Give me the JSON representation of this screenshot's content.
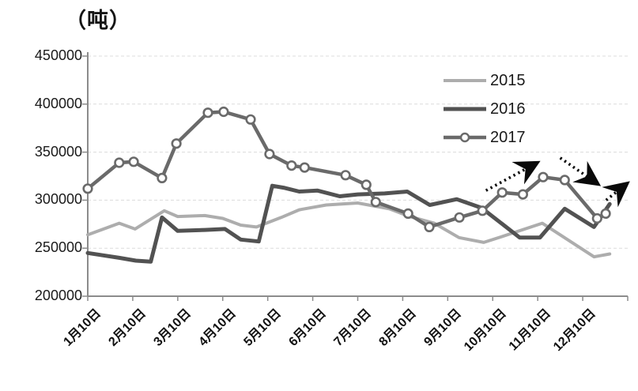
{
  "chart_data": {
    "type": "line",
    "title": "（吨）",
    "x_unit": "month (N.0 = N月10日)",
    "x_axis": {
      "categories": [
        "1月10日",
        "2月10日",
        "3月10日",
        "4月10日",
        "5月10日",
        "6月10日",
        "7月10日",
        "8月10日",
        "9月10日",
        "10月10日",
        "11月10日",
        "12月10日"
      ]
    },
    "ylim": [
      200000,
      450000
    ],
    "y_ticks": [
      200000,
      250000,
      300000,
      350000,
      400000,
      450000
    ],
    "grid": "horizontal-dashed",
    "legend_position": "upper-right-inside",
    "series": [
      {
        "name": "2015",
        "color": "#adadad",
        "width": 4,
        "markers": false,
        "points": [
          [
            1.0,
            264000
          ],
          [
            1.7,
            276000
          ],
          [
            2.05,
            270000
          ],
          [
            2.7,
            289000
          ],
          [
            3.0,
            283000
          ],
          [
            3.6,
            284000
          ],
          [
            4.0,
            281000
          ],
          [
            4.4,
            274000
          ],
          [
            4.75,
            272000
          ],
          [
            5.3,
            282000
          ],
          [
            5.7,
            290000
          ],
          [
            6.3,
            295000
          ],
          [
            7.0,
            297000
          ],
          [
            7.7,
            291000
          ],
          [
            8.15,
            283000
          ],
          [
            8.7,
            276000
          ],
          [
            9.25,
            261000
          ],
          [
            9.8,
            256000
          ],
          [
            10.2,
            262000
          ],
          [
            11.1,
            276000
          ],
          [
            12.25,
            241000
          ],
          [
            12.6,
            244000
          ]
        ]
      },
      {
        "name": "2016",
        "color": "#525252",
        "width": 5,
        "markers": false,
        "points": [
          [
            1.0,
            245000
          ],
          [
            1.7,
            240000
          ],
          [
            2.07,
            237000
          ],
          [
            2.4,
            236000
          ],
          [
            2.65,
            282000
          ],
          [
            3.0,
            268000
          ],
          [
            3.6,
            269000
          ],
          [
            4.05,
            270000
          ],
          [
            4.4,
            259000
          ],
          [
            4.8,
            257000
          ],
          [
            5.1,
            315000
          ],
          [
            5.35,
            313000
          ],
          [
            5.7,
            309000
          ],
          [
            6.1,
            310000
          ],
          [
            6.6,
            304000
          ],
          [
            7.0,
            306000
          ],
          [
            7.6,
            307000
          ],
          [
            8.1,
            309000
          ],
          [
            8.6,
            295000
          ],
          [
            9.2,
            301000
          ],
          [
            9.75,
            292000
          ],
          [
            10.6,
            261000
          ],
          [
            11.05,
            261000
          ],
          [
            11.6,
            291000
          ],
          [
            12.25,
            272000
          ],
          [
            12.6,
            296000
          ]
        ]
      },
      {
        "name": "2017",
        "color": "#6a6a6a",
        "width": 4.5,
        "markers": true,
        "points": [
          [
            1.0,
            312000
          ],
          [
            1.7,
            339000
          ],
          [
            2.02,
            340000
          ],
          [
            2.65,
            323000
          ],
          [
            2.97,
            359000
          ],
          [
            3.67,
            391000
          ],
          [
            4.02,
            392000
          ],
          [
            4.62,
            384000
          ],
          [
            5.04,
            348000
          ],
          [
            5.53,
            336000
          ],
          [
            5.82,
            334000
          ],
          [
            6.73,
            326000
          ],
          [
            7.19,
            316000
          ],
          [
            7.4,
            298000
          ],
          [
            8.12,
            286000
          ],
          [
            8.59,
            272000
          ],
          [
            9.26,
            282000
          ],
          [
            9.77,
            289000
          ],
          [
            10.21,
            308000
          ],
          [
            10.67,
            306000
          ],
          [
            11.12,
            324000
          ],
          [
            11.6,
            321000
          ],
          [
            12.32,
            281000
          ],
          [
            12.51,
            286000
          ]
        ]
      }
    ],
    "annotations": {
      "arrow_color": "#0a0a0a",
      "arrows_dotted": [
        {
          "from": [
            9.85,
            310000
          ],
          "to": [
            10.95,
            338000
          ]
        },
        {
          "from": [
            11.5,
            344000
          ],
          "to": [
            12.3,
            318000
          ]
        },
        {
          "from": [
            12.52,
            300000
          ],
          "to": [
            12.95,
            316000
          ]
        }
      ]
    },
    "axis_color": "#8c8c8c",
    "gridline_color": "#dcdcdc"
  }
}
